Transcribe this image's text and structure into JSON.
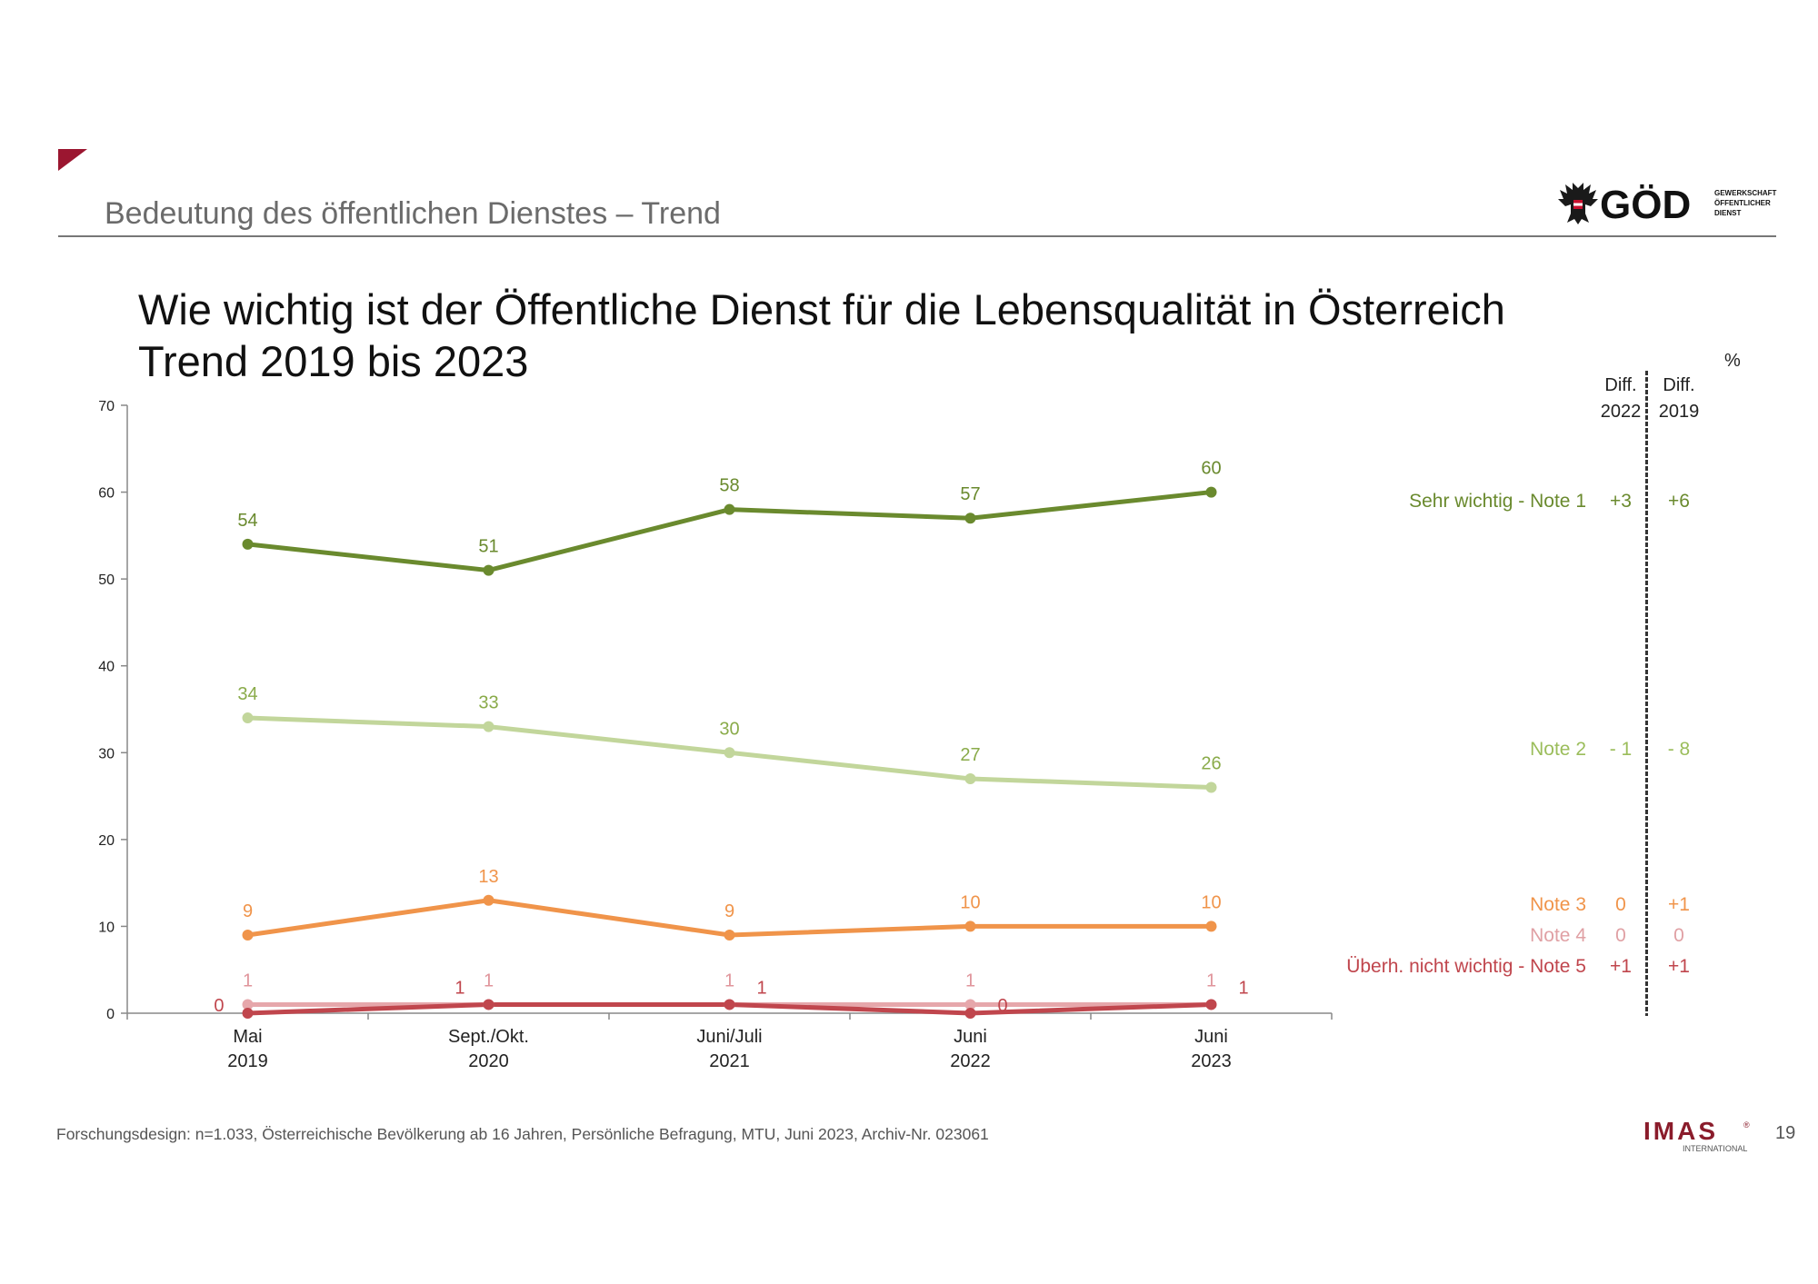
{
  "slide": {
    "section_title": "Bedeutung des öffentlichen Dienstes – Trend",
    "title_line1": "Wie wichtig ist der Öffentliche Dienst für die Lebensqualität in Österreich",
    "title_line2": "Trend 2019 bis 2023",
    "unit": "%",
    "footnote": "Forschungsdesign: n=1.033, Österreichische Bevölkerung ab 16 Jahren, Persönliche Befragung, MTU, Juni 2023, Archiv-Nr. 023061",
    "page_number": "19",
    "logo_god": {
      "text": "GÖD",
      "subtext": [
        "GEWERKSCHAFT",
        "ÖFFENTLICHER",
        "DIENST"
      ]
    },
    "logo_imas": {
      "text": "IMAS",
      "subtext": "INTERNATIONAL",
      "registered": "®"
    }
  },
  "diff_headers": [
    {
      "line1": "Diff.",
      "line2": "2022"
    },
    {
      "line1": "Diff.",
      "line2": "2019"
    }
  ],
  "legend": [
    {
      "label": "Sehr wichtig - Note 1",
      "diff_2022": "+3",
      "diff_2019": "+6",
      "color": "#6a8a2e"
    },
    {
      "label": "Note 2",
      "diff_2022": "- 1",
      "diff_2019": "- 8",
      "color": "#9bbd5b"
    },
    {
      "label": "Note 3",
      "diff_2022": "0",
      "diff_2019": "+1",
      "color": "#f0944a"
    },
    {
      "label": "Note 4",
      "diff_2022": "0",
      "diff_2019": "0",
      "color": "#e0a0a4"
    },
    {
      "label": "Überh. nicht wichtig - Note 5",
      "diff_2022": "+1",
      "diff_2019": "+1",
      "color": "#c0464d"
    }
  ],
  "chart_data": {
    "type": "line",
    "title": "Wie wichtig ist der Öffentliche Dienst für die Lebensqualität in Österreich",
    "subtitle": "Trend 2019 bis 2023",
    "categories": [
      [
        "Mai",
        "2019"
      ],
      [
        "Sept./Okt.",
        "2020"
      ],
      [
        "Juni/Juli",
        "2021"
      ],
      [
        "Juni",
        "2022"
      ],
      [
        "Juni",
        "2023"
      ]
    ],
    "ylim": [
      0,
      70
    ],
    "yticks": [
      0,
      10,
      20,
      30,
      40,
      50,
      60,
      70
    ],
    "series": [
      {
        "name": "Sehr wichtig - Note 1",
        "values": [
          54,
          51,
          58,
          57,
          60
        ],
        "color": "#6a8a2e",
        "label_color": "#6a8a2e",
        "label_position": "above"
      },
      {
        "name": "Note 2",
        "values": [
          34,
          33,
          30,
          27,
          26
        ],
        "color": "#c2d69b",
        "label_color": "#8aab4a",
        "label_position": "above"
      },
      {
        "name": "Note 3",
        "values": [
          9,
          13,
          9,
          10,
          10
        ],
        "color": "#f0944a",
        "label_color": "#f0944a",
        "label_position": "above"
      },
      {
        "name": "Note 4",
        "values": [
          1,
          1,
          1,
          1,
          1
        ],
        "color": "#e6a7ab",
        "label_color": "#e0959b",
        "label_position": "above"
      },
      {
        "name": "Überh. nicht wichtig - Note 5",
        "values": [
          0,
          1,
          1,
          0,
          1
        ],
        "color": "#c0464d",
        "label_color": "#c0464d",
        "label_position": "mixed"
      }
    ]
  }
}
